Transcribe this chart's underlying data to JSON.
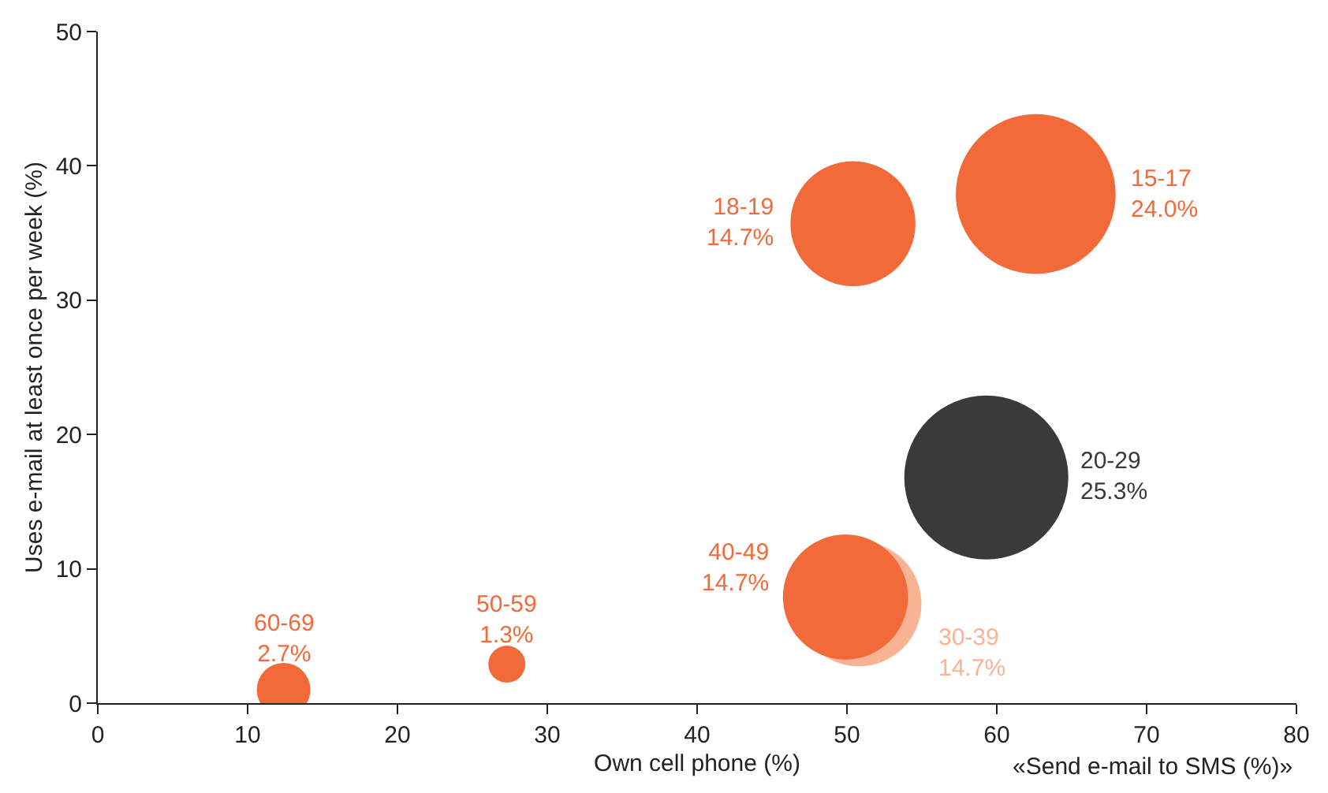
{
  "chart_data": {
    "type": "bubble",
    "xlabel": "Own cell phone (%)",
    "ylabel": "Uses e-mail at least once per week (%)",
    "annotations": [
      "«Send e-mail to SMS (%)»"
    ],
    "x": [
      62.6,
      50.4,
      59.3,
      50.8,
      49.9,
      27.3,
      12.4
    ],
    "series": [
      {
        "colors": [
          "#f26a3a",
          "#f26a3a",
          "#3a3a3a",
          "#f9b394",
          "#f26a3a",
          "#f26a3a",
          "#f26a3a"
        ],
        "values": [
          37.9,
          35.7,
          16.8,
          7.4,
          7.9,
          2.9,
          1.0
        ],
        "sizes": [
          0.949,
          0.581,
          1,
          0.581,
          0.581,
          0.051,
          0.107
        ],
        "value_labels": [
          "15-17\n24.0%",
          "18-19\n14.7%",
          "20-29\n25.3%",
          "30-39\n14.7%",
          "40-49\n14.7%",
          "50-59\n1.3%",
          "60-69\n2.7%"
        ]
      }
    ],
    "xlim": [
      0,
      80
    ],
    "xticks": [
      0,
      10,
      20,
      30,
      40,
      50,
      60,
      70,
      80
    ],
    "ylim": [
      0,
      50
    ],
    "yticks": [
      0,
      10,
      20,
      30,
      40,
      50
    ]
  }
}
